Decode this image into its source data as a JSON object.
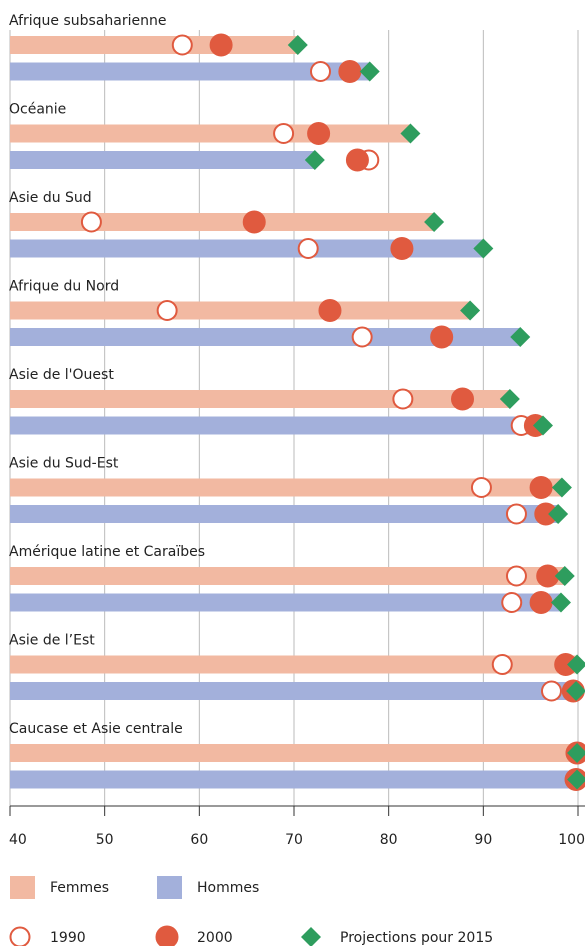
{
  "chart_data": {
    "type": "dot",
    "categories": [
      "Afrique subsaharienne",
      "Océanie",
      "Asie du Sud",
      "Afrique du Nord",
      "Asie de l'Ouest",
      "Asie du Sud-Est",
      "Amérique latine et Caraïbes",
      "Asie de l’Est",
      "Caucase et Asie centrale"
    ],
    "groups": [
      {
        "name": "Femmes",
        "color": "#f2b9a2"
      },
      {
        "name": "Hommes",
        "color": "#a3b0db"
      }
    ],
    "series": [
      {
        "name": "1990",
        "marker": "open-circle",
        "color": "#e05a3f",
        "values": [
          [
            58.2,
            72.8
          ],
          [
            68.9,
            77.9
          ],
          [
            48.6,
            71.5
          ],
          [
            56.6,
            77.2
          ],
          [
            81.5,
            94.0
          ],
          [
            89.8,
            93.5
          ],
          [
            93.5,
            93.0
          ],
          [
            92.0,
            97.2
          ],
          [
            99.8,
            99.7
          ]
        ]
      },
      {
        "name": "2000",
        "marker": "circle",
        "color": "#e05a3f",
        "values": [
          [
            62.3,
            75.9
          ],
          [
            72.6,
            76.7
          ],
          [
            65.8,
            81.4
          ],
          [
            73.8,
            85.6
          ],
          [
            87.8,
            95.5
          ],
          [
            96.1,
            96.6
          ],
          [
            96.8,
            96.1
          ],
          [
            98.7,
            99.5
          ],
          [
            99.9,
            99.8
          ]
        ]
      },
      {
        "name": "Projections pour 2015",
        "marker": "diamond",
        "color": "#2e9d5e",
        "values": [
          [
            70.4,
            78.0
          ],
          [
            82.3,
            72.2
          ],
          [
            84.8,
            90.0
          ],
          [
            88.6,
            93.9
          ],
          [
            92.8,
            96.3
          ],
          [
            98.3,
            97.9
          ],
          [
            98.6,
            98.2
          ],
          [
            99.9,
            99.8
          ],
          [
            99.9,
            99.9
          ]
        ]
      }
    ],
    "bar_series": 2,
    "xlim": [
      40,
      100
    ],
    "xticks": [
      40,
      50,
      60,
      70,
      80,
      90,
      100
    ],
    "grid": true
  }
}
